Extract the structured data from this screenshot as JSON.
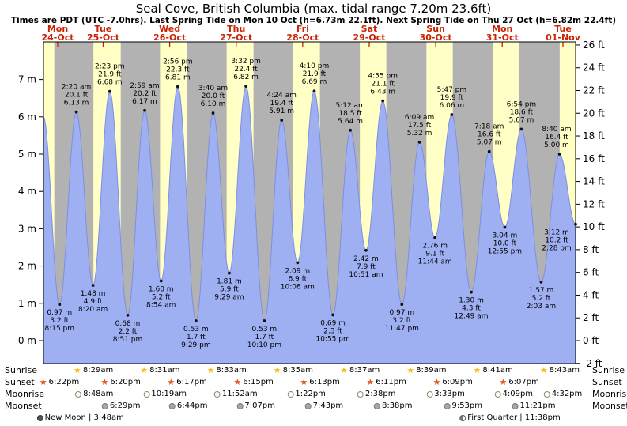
{
  "header": {
    "title": "Seal Cove, British Columbia (max. tidal range 7.20m 23.6ft)",
    "subtitle": "Times are PDT (UTC -7.0hrs). Last Spring Tide on Mon 10 Oct (h=6.73m 22.1ft). Next Spring Tide on Thu 27 Oct (h=6.82m 22.4ft)"
  },
  "rows": {
    "sunrise_label": "Sunrise",
    "sunset_label": "Sunset",
    "moonrise_label": "Moonrise",
    "moonset_label": "Moonset"
  },
  "colors": {
    "day_band": "#ffffc6",
    "night_band": "#b2b2b2",
    "tide_fill": "#9fb0f2",
    "tide_stroke": "#7d8fe0",
    "day_label": "#cc2200",
    "sunrise_star": "#f0c020",
    "sunset_star": "#e05a1e",
    "text": "#000000"
  },
  "chart_data": {
    "type": "area",
    "title": "Seal Cove, British Columbia (max. tidal range 7.20m 23.6ft)",
    "xlabel": "",
    "ylabel_left": "m",
    "ylabel_right": "ft",
    "y_axis_left": {
      "unit": "m",
      "min": 0,
      "max": 7,
      "step": 1
    },
    "y_axis_right": {
      "unit": "ft",
      "min": -2,
      "max": 26,
      "step": 2
    },
    "legend": "none",
    "grid": false,
    "days": [
      {
        "name": "Mon",
        "date": "24-Oct",
        "sunrise": null,
        "sunset": "6:22pm",
        "moonrise": null,
        "moonset": null
      },
      {
        "name": "Tue",
        "date": "25-Oct",
        "sunrise": "8:29am",
        "sunset": "6:20pm",
        "moonrise": "8:48am",
        "moonset": "6:29pm"
      },
      {
        "name": "Wed",
        "date": "26-Oct",
        "sunrise": "8:31am",
        "sunset": "6:17pm",
        "moonrise": "10:19am",
        "moonset": "6:44pm"
      },
      {
        "name": "Thu",
        "date": "27-Oct",
        "sunrise": "8:33am",
        "sunset": "6:15pm",
        "moonrise": "11:52am",
        "moonset": "7:07pm"
      },
      {
        "name": "Fri",
        "date": "28-Oct",
        "sunrise": "8:35am",
        "sunset": "6:13pm",
        "moonrise": "1:22pm",
        "moonset": "7:43pm"
      },
      {
        "name": "Sat",
        "date": "29-Oct",
        "sunrise": "8:37am",
        "sunset": "6:11pm",
        "moonrise": "2:38pm",
        "moonset": "8:38pm"
      },
      {
        "name": "Sun",
        "date": "30-Oct",
        "sunrise": "8:39am",
        "sunset": "6:09pm",
        "moonrise": "3:33pm",
        "moonset": "9:53pm"
      },
      {
        "name": "Mon",
        "date": "31-Oct",
        "sunrise": "8:41am",
        "sunset": "6:07pm",
        "moonrise": "4:09pm",
        "moonset": "11:21pm"
      },
      {
        "name": "Tue",
        "date": "01-Nov",
        "sunrise": "8:43am",
        "sunset": null,
        "moonrise": "4:32pm",
        "moonset": null
      }
    ],
    "extremes": [
      {
        "day": 0,
        "time": "8:15 pm",
        "height_m": 0.97,
        "height_ft": 3.2,
        "type": "low"
      },
      {
        "day": 1,
        "time": "2:20 am",
        "height_m": 6.13,
        "height_ft": 20.1,
        "type": "high"
      },
      {
        "day": 1,
        "time": "8:20 am",
        "height_m": 1.48,
        "height_ft": 4.9,
        "type": "low"
      },
      {
        "day": 1,
        "time": "2:23 pm",
        "height_m": 6.68,
        "height_ft": 21.9,
        "type": "high"
      },
      {
        "day": 1,
        "time": "8:51 pm",
        "height_m": 0.68,
        "height_ft": 2.2,
        "type": "low"
      },
      {
        "day": 2,
        "time": "2:59 am",
        "height_m": 6.17,
        "height_ft": 20.2,
        "type": "high"
      },
      {
        "day": 2,
        "time": "8:54 am",
        "height_m": 1.6,
        "height_ft": 5.2,
        "type": "low"
      },
      {
        "day": 2,
        "time": "2:56 pm",
        "height_m": 6.81,
        "height_ft": 22.3,
        "type": "high"
      },
      {
        "day": 2,
        "time": "9:29 pm",
        "height_m": 0.53,
        "height_ft": 1.7,
        "type": "low"
      },
      {
        "day": 3,
        "time": "3:40 am",
        "height_m": 6.1,
        "height_ft": 20.0,
        "type": "high"
      },
      {
        "day": 3,
        "time": "9:29 am",
        "height_m": 1.81,
        "height_ft": 5.9,
        "type": "low"
      },
      {
        "day": 3,
        "time": "3:32 pm",
        "height_m": 6.82,
        "height_ft": 22.4,
        "type": "high"
      },
      {
        "day": 3,
        "time": "10:10 pm",
        "height_m": 0.53,
        "height_ft": 1.7,
        "type": "low"
      },
      {
        "day": 4,
        "time": "4:24 am",
        "height_m": 5.91,
        "height_ft": 19.4,
        "type": "high"
      },
      {
        "day": 4,
        "time": "10:08 am",
        "height_m": 2.09,
        "height_ft": 6.9,
        "type": "low"
      },
      {
        "day": 4,
        "time": "4:10 pm",
        "height_m": 6.69,
        "height_ft": 21.9,
        "type": "high"
      },
      {
        "day": 4,
        "time": "10:55 pm",
        "height_m": 0.69,
        "height_ft": 2.3,
        "type": "low"
      },
      {
        "day": 5,
        "time": "5:12 am",
        "height_m": 5.64,
        "height_ft": 18.5,
        "type": "high"
      },
      {
        "day": 5,
        "time": "10:51 am",
        "height_m": 2.42,
        "height_ft": 7.9,
        "type": "low"
      },
      {
        "day": 5,
        "time": "4:55 pm",
        "height_m": 6.43,
        "height_ft": 21.1,
        "type": "high"
      },
      {
        "day": 5,
        "time": "11:47 pm",
        "height_m": 0.97,
        "height_ft": 3.2,
        "type": "low"
      },
      {
        "day": 6,
        "time": "6:09 am",
        "height_m": 5.32,
        "height_ft": 17.5,
        "type": "high"
      },
      {
        "day": 6,
        "time": "11:44 am",
        "height_m": 2.76,
        "height_ft": 9.1,
        "type": "low"
      },
      {
        "day": 6,
        "time": "5:47 pm",
        "height_m": 6.06,
        "height_ft": 19.9,
        "type": "high"
      },
      {
        "day": 7,
        "time": "12:49 am",
        "height_m": 1.3,
        "height_ft": 4.3,
        "type": "low"
      },
      {
        "day": 7,
        "time": "7:18 am",
        "height_m": 5.07,
        "height_ft": 16.6,
        "type": "high"
      },
      {
        "day": 7,
        "time": "12:55 pm",
        "height_m": 3.04,
        "height_ft": 10.0,
        "type": "low"
      },
      {
        "day": 7,
        "time": "6:54 pm",
        "height_m": 5.67,
        "height_ft": 18.6,
        "type": "high"
      },
      {
        "day": 8,
        "time": "2:03 am",
        "height_m": 1.57,
        "height_ft": 5.2,
        "type": "low"
      },
      {
        "day": 8,
        "time": "8:40 am",
        "height_m": 5.0,
        "height_ft": 16.4,
        "type": "high"
      },
      {
        "day": 8,
        "time": "2:28 pm",
        "height_m": 3.12,
        "height_ft": 10.2,
        "type": "end"
      }
    ],
    "moon_phases": [
      {
        "name": "New Moon",
        "time": "3:48am",
        "day": 1
      },
      {
        "name": "First Quarter",
        "time": "11:38pm",
        "day": 7
      }
    ]
  }
}
